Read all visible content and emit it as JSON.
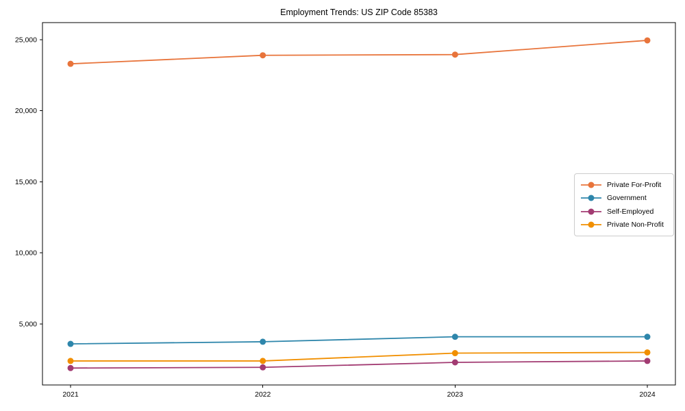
{
  "chart_data": {
    "type": "line",
    "title": "Employment Trends: US ZIP Code 85383",
    "x_labels": [
      "2021",
      "2022",
      "2023",
      "2024"
    ],
    "series": [
      {
        "name": "Private For-Profit",
        "color": "#e8743b",
        "values": [
          23300,
          23900,
          23950,
          24950
        ]
      },
      {
        "name": "Government",
        "color": "#2e86ab",
        "values": [
          3600,
          3750,
          4100,
          4100
        ]
      },
      {
        "name": "Self-Employed",
        "color": "#a23b72",
        "values": [
          1900,
          1950,
          2300,
          2400
        ]
      },
      {
        "name": "Private Non-Profit",
        "color": "#f18f01",
        "values": [
          2400,
          2400,
          2950,
          3000
        ]
      }
    ],
    "ylim": [
      710,
      26200
    ],
    "yticks": [
      5000,
      10000,
      15000,
      20000,
      25000
    ],
    "ytick_labels": [
      "5,000",
      "10,000",
      "15,000",
      "20,000",
      "25,000"
    ],
    "xlabel": "",
    "ylabel": "",
    "grid": false,
    "legend_position": "center-right",
    "marker": "circle",
    "axis_color": "#000000"
  }
}
